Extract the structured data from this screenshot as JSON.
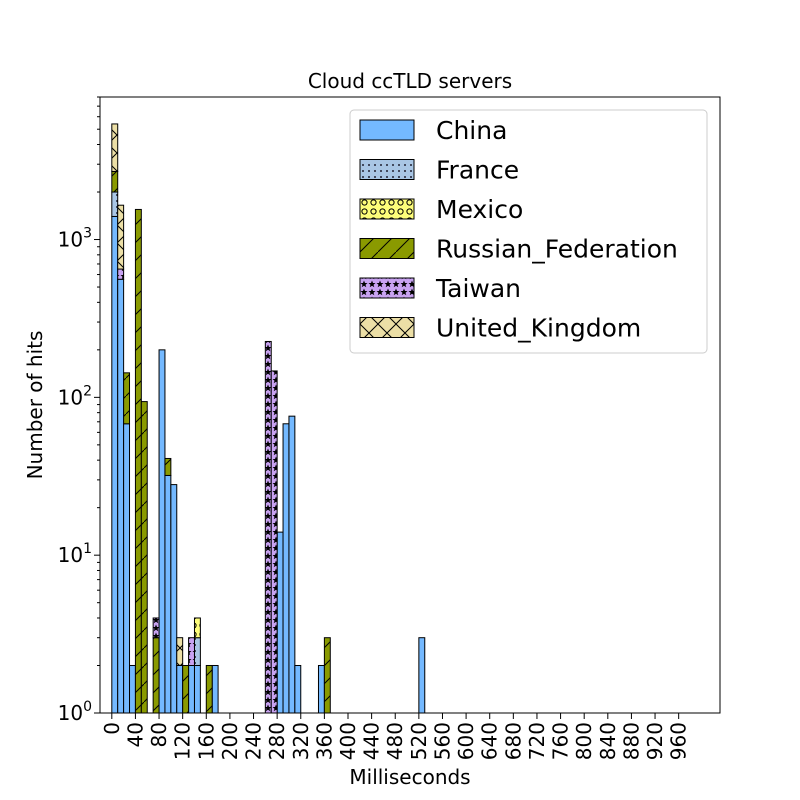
{
  "chart_data": {
    "type": "bar",
    "stacked": true,
    "title": "Cloud ccTLD servers",
    "xlabel": "Milliseconds",
    "ylabel": "Number of hits",
    "yscale": "log",
    "ylim": [
      1,
      8000
    ],
    "xlim": [
      -20,
      1030
    ],
    "bin_width": 10,
    "x_ticks": [
      "0",
      "40",
      "80",
      "120",
      "160",
      "200",
      "240",
      "280",
      "320",
      "360",
      "400",
      "440",
      "480",
      "520",
      "560",
      "600",
      "640",
      "680",
      "720",
      "760",
      "800",
      "840",
      "880",
      "920",
      "960"
    ],
    "y_ticks": [
      "10^0",
      "10^1",
      "10^2",
      "10^3"
    ],
    "legend_position": "upper right",
    "grid": false,
    "series": [
      {
        "name": "China",
        "color": "#74b9ff",
        "hatch": "none",
        "points": [
          [
            0,
            1400
          ],
          [
            10,
            560
          ],
          [
            20,
            68
          ],
          [
            30,
            2
          ],
          [
            40,
            1
          ],
          [
            50,
            1
          ],
          [
            60,
            1
          ],
          [
            70,
            1
          ],
          [
            80,
            200
          ],
          [
            90,
            32
          ],
          [
            100,
            28
          ],
          [
            110,
            2
          ],
          [
            120,
            1
          ],
          [
            130,
            2
          ],
          [
            140,
            2
          ],
          [
            150,
            1
          ],
          [
            160,
            1
          ],
          [
            170,
            2
          ],
          [
            180,
            1
          ],
          [
            190,
            1
          ],
          [
            200,
            1
          ],
          [
            210,
            1
          ],
          [
            220,
            1
          ],
          [
            230,
            1
          ],
          [
            240,
            1
          ],
          [
            250,
            1
          ],
          [
            260,
            1
          ],
          [
            270,
            1
          ],
          [
            280,
            14
          ],
          [
            290,
            68
          ],
          [
            300,
            76
          ],
          [
            310,
            2
          ],
          [
            320,
            1
          ],
          [
            330,
            1
          ],
          [
            340,
            1
          ],
          [
            350,
            2
          ],
          [
            360,
            1
          ],
          [
            520,
            3
          ]
        ]
      },
      {
        "name": "France",
        "color": "#a9c6e5",
        "hatch": "dots",
        "points": [
          [
            0,
            600
          ],
          [
            140,
            1
          ]
        ]
      },
      {
        "name": "Mexico",
        "color": "#fdfd7a",
        "hatch": "circles",
        "points": [
          [
            140,
            1
          ]
        ]
      },
      {
        "name": "Russian_Federation",
        "color": "#8a9a00",
        "hatch": "diagonal",
        "points": [
          [
            0,
            700
          ],
          [
            20,
            75
          ],
          [
            40,
            1550
          ],
          [
            50,
            93
          ],
          [
            70,
            2
          ],
          [
            90,
            9
          ],
          [
            120,
            1
          ],
          [
            160,
            1
          ],
          [
            360,
            2
          ]
        ]
      },
      {
        "name": "Taiwan",
        "color": "#c9a3f2",
        "hatch": "stars",
        "points": [
          [
            10,
            90
          ],
          [
            70,
            1
          ],
          [
            130,
            1
          ],
          [
            260,
            225
          ],
          [
            270,
            146
          ]
        ]
      },
      {
        "name": "United_Kingdom",
        "color": "#ecdfa6",
        "hatch": "crosshatch",
        "points": [
          [
            0,
            2700
          ],
          [
            10,
            1000
          ],
          [
            110,
            1
          ]
        ]
      }
    ]
  }
}
